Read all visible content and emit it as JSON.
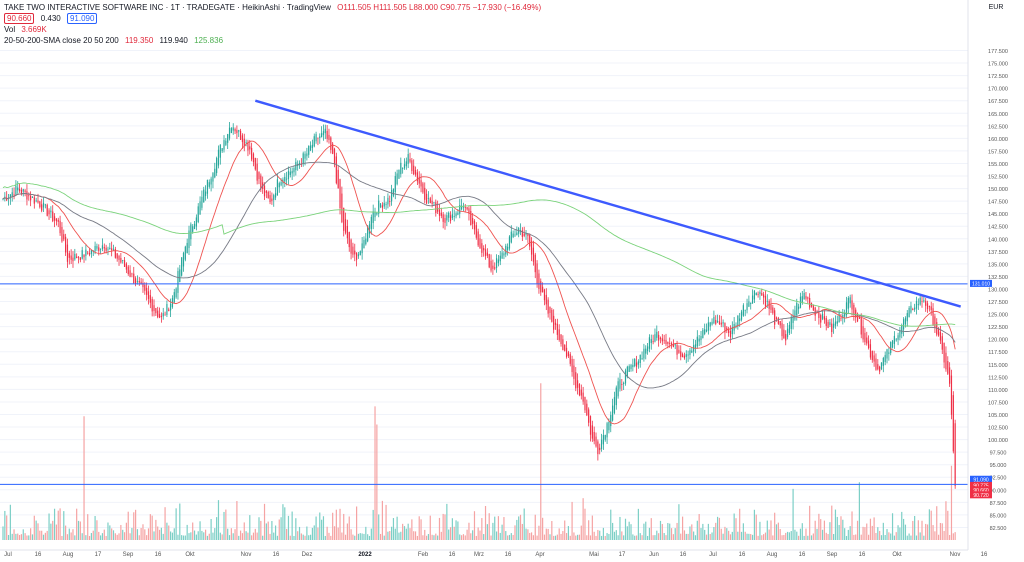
{
  "header": {
    "symbol_line": "TAKE TWO INTERACTIVE SOFTWARE INC · 1T · TRADEGATE · HeikinAshi · TradingView",
    "ohlc": "O111.505 H111.505 L88.000 C90.775 −17.930 (−16.49%)",
    "bid": "90.660",
    "spread": "0.430",
    "ask": "91.090",
    "vol_label": "Vol",
    "vol_value": "3.669K",
    "sma_label": "20-50-200-SMA close 20 50 200",
    "sma20": "119.350",
    "sma50": "119.940",
    "sma200": "125.836"
  },
  "axis": {
    "currency": "EUR",
    "x_ticks": [
      "Jul",
      "16",
      "Aug",
      "17",
      "Sep",
      "16",
      "Okt",
      "Nov",
      "16",
      "Dez",
      "2022",
      "Feb",
      "16",
      "Mrz",
      "16",
      "Apr",
      "Mai",
      "17",
      "Jun",
      "16",
      "Jul",
      "16",
      "Aug",
      "16",
      "Sep",
      "16",
      "Okt",
      "Nov",
      "16"
    ],
    "price_badges": [
      "131.010",
      "91.090",
      "90.775",
      "90.660",
      "90.720"
    ]
  },
  "colors": {
    "up": "#26a69a",
    "down": "#ef5350",
    "trendline": "#3d5afe",
    "hline": "#2962ff",
    "sma20": "#ef5350",
    "sma50": "#787b86",
    "sma200": "#7bd37b"
  },
  "chart_data": {
    "type": "line",
    "ylim": [
      80,
      178
    ],
    "y_ticks": [
      82.5,
      85,
      87.5,
      90,
      92.5,
      95,
      97.5,
      100,
      102.5,
      105,
      107.5,
      110,
      112.5,
      115,
      117.5,
      120,
      122.5,
      125,
      127.5,
      130,
      132.5,
      135,
      137.5,
      140,
      142.5,
      145,
      147.5,
      150,
      152.5,
      155,
      157.5,
      160,
      162.5,
      165,
      167.5,
      170,
      172.5,
      175,
      177.5
    ],
    "price_anchors": [
      [
        0,
        148
      ],
      [
        8,
        150
      ],
      [
        20,
        147
      ],
      [
        30,
        143
      ],
      [
        35,
        136
      ],
      [
        45,
        137
      ],
      [
        55,
        139
      ],
      [
        65,
        135
      ],
      [
        75,
        130
      ],
      [
        82,
        126
      ],
      [
        86,
        124
      ],
      [
        92,
        128
      ],
      [
        100,
        140
      ],
      [
        110,
        150
      ],
      [
        118,
        158
      ],
      [
        124,
        163
      ],
      [
        128,
        161
      ],
      [
        134,
        158
      ],
      [
        140,
        150
      ],
      [
        145,
        147
      ],
      [
        150,
        152
      ],
      [
        158,
        154
      ],
      [
        165,
        157
      ],
      [
        170,
        160
      ],
      [
        175,
        161
      ],
      [
        180,
        155
      ],
      [
        184,
        143
      ],
      [
        190,
        136
      ],
      [
        195,
        138
      ],
      [
        200,
        145
      ],
      [
        205,
        147
      ],
      [
        210,
        148
      ],
      [
        215,
        154
      ],
      [
        220,
        156
      ],
      [
        225,
        152
      ],
      [
        230,
        148
      ],
      [
        235,
        146
      ],
      [
        240,
        144
      ],
      [
        245,
        145
      ],
      [
        250,
        147
      ],
      [
        255,
        142
      ],
      [
        260,
        138
      ],
      [
        265,
        134
      ],
      [
        270,
        136
      ],
      [
        275,
        140
      ],
      [
        280,
        142
      ],
      [
        285,
        140
      ],
      [
        290,
        132
      ],
      [
        295,
        126
      ],
      [
        300,
        122
      ],
      [
        305,
        118
      ],
      [
        310,
        112
      ],
      [
        315,
        108
      ],
      [
        320,
        100
      ],
      [
        323,
        98
      ],
      [
        328,
        103
      ],
      [
        333,
        110
      ],
      [
        338,
        113
      ],
      [
        345,
        116
      ],
      [
        350,
        119
      ],
      [
        355,
        121
      ],
      [
        360,
        120
      ],
      [
        365,
        118
      ],
      [
        370,
        117
      ],
      [
        375,
        119
      ],
      [
        380,
        121
      ],
      [
        385,
        124
      ],
      [
        390,
        123
      ],
      [
        395,
        121
      ],
      [
        400,
        125
      ],
      [
        405,
        128
      ],
      [
        410,
        130
      ],
      [
        415,
        127
      ],
      [
        420,
        123
      ],
      [
        425,
        120
      ],
      [
        430,
        126
      ],
      [
        435,
        129
      ],
      [
        440,
        126
      ],
      [
        445,
        124
      ],
      [
        450,
        122
      ],
      [
        455,
        125
      ],
      [
        460,
        128
      ],
      [
        465,
        123
      ],
      [
        470,
        118
      ],
      [
        475,
        114
      ],
      [
        480,
        117
      ],
      [
        485,
        121
      ],
      [
        490,
        124
      ],
      [
        495,
        127
      ],
      [
        500,
        128
      ],
      [
        505,
        124
      ],
      [
        508,
        120
      ],
      [
        511,
        116
      ],
      [
        514,
        111
      ],
      [
        517,
        90.775
      ]
    ],
    "total_bars": 518,
    "volume_spikes": [
      [
        44,
        0.75
      ],
      [
        202,
        0.81
      ],
      [
        203,
        0.7
      ],
      [
        292,
        0.95
      ],
      [
        429,
        0.31
      ],
      [
        465,
        0.35
      ],
      [
        515,
        0.45
      ]
    ],
    "trendline": {
      "from": [
        137,
        167.5
      ],
      "to": [
        520,
        126.5
      ]
    },
    "hlines": [
      131.01,
      91.09
    ],
    "sma_periods": [
      20,
      50,
      200
    ]
  }
}
